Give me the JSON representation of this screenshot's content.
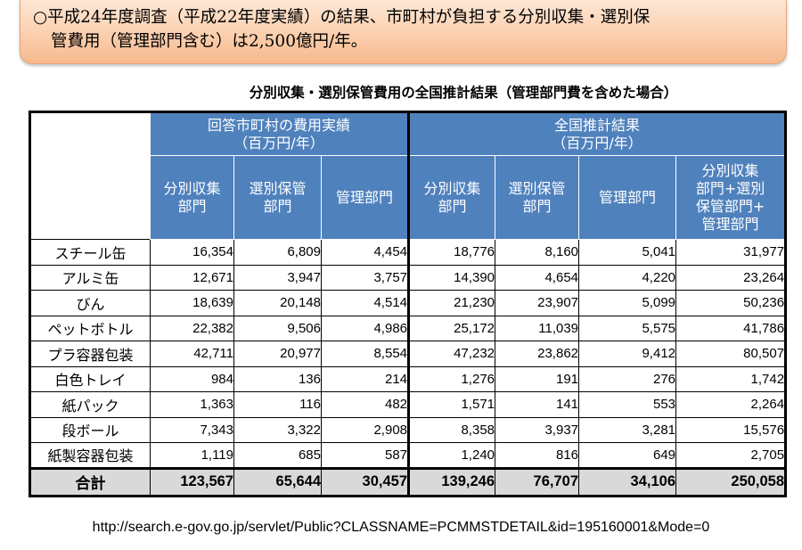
{
  "callout": {
    "line1": "○平成24年度調査（平成22年度実績）の結果、市町村が負担する分別収集・選別保",
    "line2": "管費用（管理部門含む）は2,500億円/年。"
  },
  "table_title": "分別収集・選別保管費用の全国推計結果（管理部門費を含めた場合）",
  "groups": {
    "left": {
      "line1": "回答市町村の費用実績",
      "line2": "（百万円/年）"
    },
    "right": {
      "line1": "全国推計結果",
      "line2": "（百万円/年）"
    }
  },
  "columns": [
    [
      "分別収集",
      "部門"
    ],
    [
      "選別保管",
      "部門"
    ],
    [
      "管理部門"
    ],
    [
      "分別収集",
      "部門"
    ],
    [
      "選別保管",
      "部門"
    ],
    [
      "管理部門"
    ],
    [
      "分別収集",
      "部門+選別",
      "保管部門+",
      "管理部門"
    ]
  ],
  "rows": [
    {
      "label": "スチール缶",
      "values": [
        "16,354",
        "6,809",
        "4,454",
        "18,776",
        "8,160",
        "5,041",
        "31,977"
      ]
    },
    {
      "label": "アルミ缶",
      "values": [
        "12,671",
        "3,947",
        "3,757",
        "14,390",
        "4,654",
        "4,220",
        "23,264"
      ]
    },
    {
      "label": "びん",
      "values": [
        "18,639",
        "20,148",
        "4,514",
        "21,230",
        "23,907",
        "5,099",
        "50,236"
      ]
    },
    {
      "label": "ペットボトル",
      "values": [
        "22,382",
        "9,506",
        "4,986",
        "25,172",
        "11,039",
        "5,575",
        "41,786"
      ]
    },
    {
      "label": "プラ容器包装",
      "values": [
        "42,711",
        "20,977",
        "8,554",
        "47,232",
        "23,862",
        "9,412",
        "80,507"
      ]
    },
    {
      "label": "白色トレイ",
      "values": [
        "984",
        "136",
        "214",
        "1,276",
        "191",
        "276",
        "1,742"
      ]
    },
    {
      "label": "紙パック",
      "values": [
        "1,363",
        "116",
        "482",
        "1,571",
        "141",
        "553",
        "2,264"
      ]
    },
    {
      "label": "段ボール",
      "values": [
        "7,343",
        "3,322",
        "2,908",
        "8,358",
        "3,937",
        "3,281",
        "15,576"
      ]
    },
    {
      "label": "紙製容器包装",
      "values": [
        "1,119",
        "685",
        "587",
        "1,240",
        "816",
        "649",
        "2,705"
      ]
    }
  ],
  "total": {
    "label": "合計",
    "values": [
      "123,567",
      "65,644",
      "30,457",
      "139,246",
      "76,707",
      "34,106",
      "250,058"
    ]
  },
  "source_url": "http://search.e-gov.go.jp/servlet/Public?CLASSNAME=PCMMSTDETAIL&id=195160001&Mode=0",
  "colors": {
    "header_blue": "#4f81bd",
    "total_gray": "#d9d9d9",
    "callout_orange": "#fbcfae"
  }
}
